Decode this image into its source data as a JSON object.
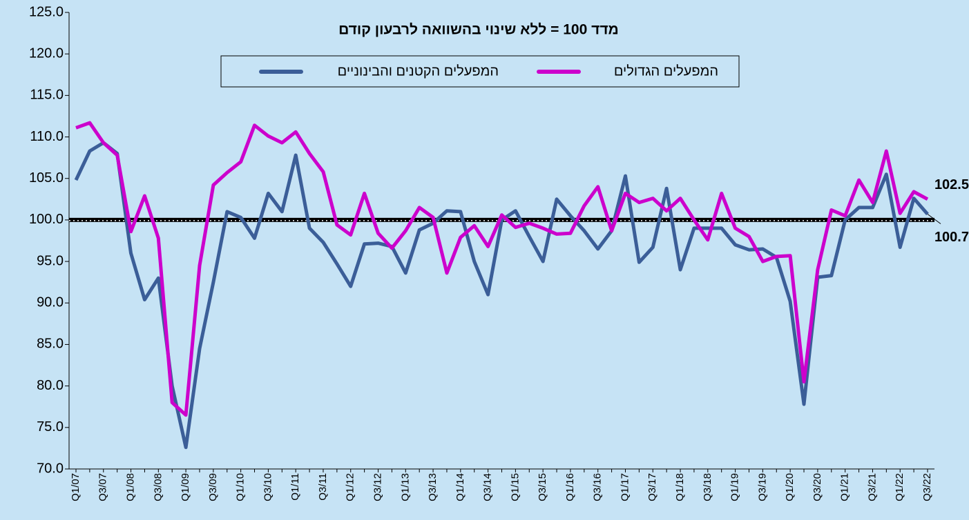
{
  "chart_data": {
    "type": "line",
    "title": "מדד 100 = ללא שינוי בהשוואה לרבעון קודם",
    "categories": [
      "Q1/07",
      null,
      "Q3/07",
      null,
      "Q1/08",
      null,
      "Q3/08",
      null,
      "Q1/09",
      null,
      "Q3/09",
      null,
      "Q1/10",
      null,
      "Q3/10",
      null,
      "Q1/11",
      null,
      "Q3/11",
      null,
      "Q1/12",
      null,
      "Q3/12",
      null,
      "Q1/13",
      null,
      "Q3/13",
      null,
      "Q1/14",
      null,
      "Q3/14",
      null,
      "Q1/15",
      null,
      "Q3/15",
      null,
      "Q1/16",
      null,
      "Q3/16",
      null,
      "Q1/17",
      null,
      "Q3/17",
      null,
      "Q1/18",
      null,
      "Q3/18",
      null,
      "Q1/19",
      null,
      "Q3/19",
      null,
      "Q1/20",
      null,
      "Q3/20",
      null,
      "Q1/21",
      null,
      "Q3/21",
      null,
      "Q1/22",
      null,
      "Q3/22"
    ],
    "series": [
      {
        "name": "המפעלים הקטנים והבינוניים",
        "color": "#3b5e98",
        "values": [
          104.8,
          108.3,
          109.3,
          108.0,
          96.0,
          90.4,
          93.0,
          80.0,
          72.6,
          84.5,
          92.5,
          101.0,
          100.3,
          97.8,
          103.2,
          101.0,
          107.8,
          99.0,
          97.3,
          94.7,
          92.0,
          97.1,
          97.2,
          96.8,
          93.6,
          98.8,
          99.6,
          101.1,
          101.0,
          95.0,
          91.0,
          100.0,
          101.1,
          98.0,
          95.0,
          102.5,
          100.5,
          98.7,
          96.5,
          98.7,
          105.3,
          94.9,
          96.7,
          103.8,
          94.0,
          99.0,
          99.0,
          99.0,
          97.0,
          96.4,
          96.5,
          95.5,
          90.2,
          77.8,
          93.1,
          93.3,
          100.0,
          101.5,
          101.5,
          105.5,
          96.7,
          102.6,
          100.7
        ]
      },
      {
        "name": "המפעלים הגדולים",
        "color": "#cc00cc",
        "values": [
          111.1,
          111.7,
          109.3,
          107.8,
          98.6,
          102.9,
          97.8,
          78.0,
          76.5,
          94.5,
          104.2,
          105.7,
          107.0,
          111.4,
          110.1,
          109.3,
          110.6,
          108.0,
          105.8,
          99.4,
          98.2,
          103.2,
          98.4,
          96.6,
          98.7,
          101.5,
          100.3,
          93.6,
          97.9,
          99.3,
          96.8,
          100.6,
          99.1,
          99.6,
          99.0,
          98.3,
          98.4,
          101.7,
          104.0,
          98.7,
          103.2,
          102.1,
          102.6,
          101.1,
          102.6,
          100.0,
          97.6,
          103.2,
          99.0,
          98.0,
          95.0,
          95.6,
          95.7,
          80.5,
          94.0,
          101.2,
          100.5,
          104.8,
          102.1,
          108.3,
          100.8,
          103.4,
          102.5
        ]
      }
    ],
    "ylim": [
      70,
      125
    ],
    "yticks": [
      {
        "value": 70,
        "label": "70.0"
      },
      {
        "value": 75,
        "label": "75.0"
      },
      {
        "value": 80,
        "label": "80.0"
      },
      {
        "value": 85,
        "label": "85.0"
      },
      {
        "value": 90,
        "label": "90.0"
      },
      {
        "value": 95,
        "label": "95.0"
      },
      {
        "value": 100,
        "label": "100.0"
      },
      {
        "value": 105,
        "label": "105.0"
      },
      {
        "value": 110,
        "label": "110.0"
      },
      {
        "value": 115,
        "label": "115.0"
      },
      {
        "value": 120,
        "label": "120.0"
      },
      {
        "value": 125,
        "label": "125.0"
      }
    ],
    "reference_line": 100,
    "annotations": [
      "102.5",
      "100.7"
    ]
  }
}
